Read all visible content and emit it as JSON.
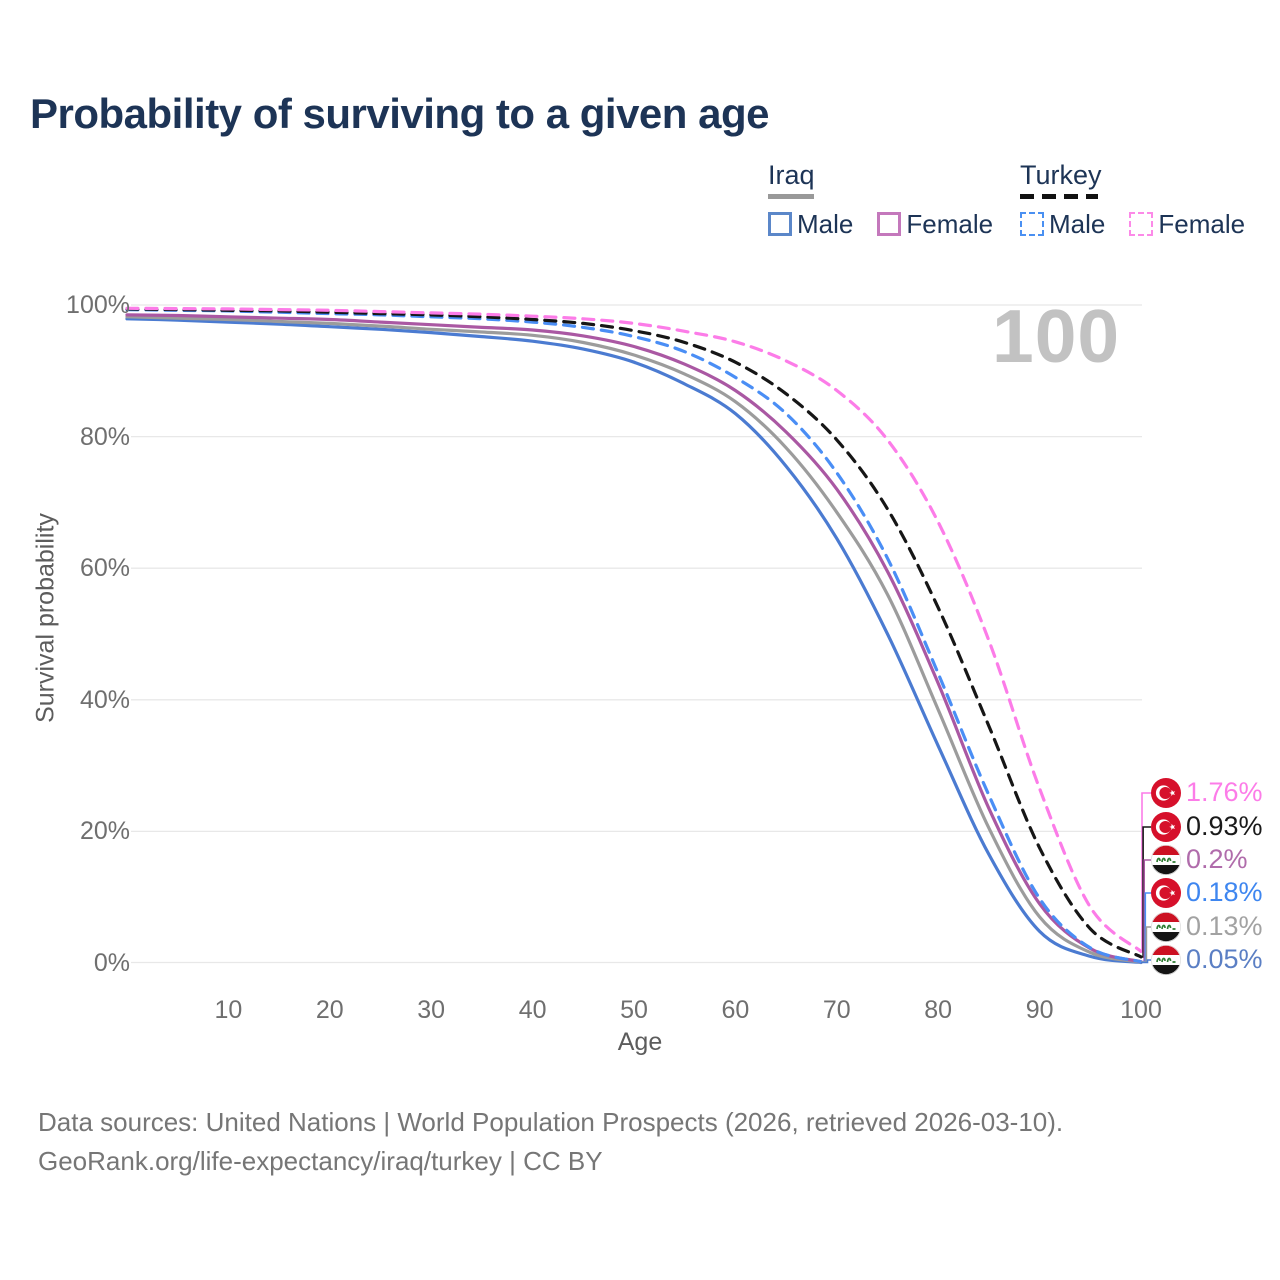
{
  "title": "Probability of surviving to a given age",
  "watermark": "100",
  "legend": {
    "groups": [
      {
        "country": "Iraq",
        "line_style": "solid",
        "underline_color": "#999999",
        "items": [
          {
            "label": "Male",
            "color": "#5b87c9",
            "dashed": false
          },
          {
            "label": "Female",
            "color": "#c478bc",
            "dashed": false
          }
        ]
      },
      {
        "country": "Turkey",
        "line_style": "dashed",
        "underline_color": "#111111",
        "items": [
          {
            "label": "Male",
            "color": "#4a90f2",
            "dashed": true
          },
          {
            "label": "Female",
            "color": "#fc8ae8",
            "dashed": true
          }
        ]
      }
    ]
  },
  "chart_data": {
    "type": "line",
    "title": "Probability of surviving to a given age",
    "xlabel": "Age",
    "ylabel": "Survival probability",
    "xlim": [
      0,
      100
    ],
    "ylim": [
      0,
      100
    ],
    "grid": true,
    "legend_position": "top-right",
    "hover_age_indicator": "100",
    "x_ticks": [
      10,
      20,
      30,
      40,
      50,
      60,
      70,
      80,
      90,
      100
    ],
    "y_ticks": [
      {
        "label": "0%",
        "value": 0
      },
      {
        "label": "20%",
        "value": 20
      },
      {
        "label": "40%",
        "value": 40
      },
      {
        "label": "60%",
        "value": 60
      },
      {
        "label": "80%",
        "value": 80
      },
      {
        "label": "100%",
        "value": 100
      }
    ],
    "ages": [
      0,
      5,
      10,
      15,
      20,
      25,
      30,
      35,
      40,
      45,
      50,
      55,
      60,
      65,
      70,
      75,
      80,
      85,
      90,
      95,
      100
    ],
    "series": [
      {
        "name": "Iraq Male",
        "country": "iraq",
        "sex": "male",
        "color": "#4b7bd1",
        "dashed": false,
        "end_label": "0.05%",
        "end_label_color": "#5b7fc4",
        "values": [
          97.9,
          97.7,
          97.4,
          97.1,
          96.7,
          96.3,
          95.8,
          95.2,
          94.5,
          93.3,
          91.3,
          88.0,
          83.5,
          75.5,
          64.5,
          50.0,
          33.0,
          16.5,
          4.8,
          1.0,
          0.05
        ]
      },
      {
        "name": "Iraq (both sexes)",
        "country": "iraq",
        "sex": "all",
        "color": "#9c9c9c",
        "dashed": false,
        "end_label": "0.13%",
        "end_label_color": "#a2a2a2",
        "values": [
          98.2,
          98.0,
          97.8,
          97.5,
          97.2,
          96.8,
          96.3,
          95.9,
          95.4,
          94.3,
          92.4,
          89.5,
          85.3,
          78.3,
          68.5,
          56.0,
          38.5,
          20.5,
          7.0,
          1.6,
          0.13
        ]
      },
      {
        "name": "Iraq Female",
        "country": "iraq",
        "sex": "female",
        "color": "#aa58a3",
        "dashed": false,
        "end_label": "0.2%",
        "end_label_color": "#b06cab",
        "values": [
          98.5,
          98.4,
          98.2,
          98.0,
          97.8,
          97.4,
          97.0,
          96.6,
          96.2,
          95.3,
          93.7,
          91.0,
          87.0,
          80.7,
          72.0,
          59.5,
          42.5,
          23.5,
          9.0,
          2.2,
          0.2
        ]
      },
      {
        "name": "Turkey Male",
        "country": "turkey",
        "sex": "male",
        "color": "#4a8ef5",
        "dashed": true,
        "end_label": "0.18%",
        "end_label_color": "#3e86f0",
        "values": [
          99.3,
          99.2,
          99.1,
          98.9,
          98.7,
          98.5,
          98.2,
          97.9,
          97.4,
          96.6,
          95.2,
          92.9,
          89.0,
          83.5,
          74.5,
          61.5,
          44.0,
          25.5,
          9.8,
          2.3,
          0.18
        ]
      },
      {
        "name": "Turkey (both sexes)",
        "country": "turkey",
        "sex": "all",
        "color": "#161616",
        "dashed": true,
        "end_label": "0.93%",
        "end_label_color": "#1a1a1a",
        "values": [
          99.4,
          99.3,
          99.2,
          99.1,
          98.9,
          98.7,
          98.5,
          98.2,
          97.8,
          97.2,
          96.1,
          94.3,
          91.3,
          86.5,
          79.5,
          69.0,
          54.0,
          36.0,
          17.5,
          5.2,
          0.93
        ]
      },
      {
        "name": "Turkey Female",
        "country": "turkey",
        "sex": "female",
        "color": "#fc7ce8",
        "dashed": true,
        "end_label": "1.76%",
        "end_label_color": "#fc7ce8",
        "values": [
          99.5,
          99.45,
          99.4,
          99.3,
          99.2,
          99.0,
          98.8,
          98.6,
          98.3,
          97.9,
          97.2,
          96.0,
          94.4,
          91.5,
          87.0,
          79.5,
          67.0,
          49.0,
          26.5,
          8.5,
          1.76
        ]
      }
    ]
  },
  "footer": {
    "line1": "Data sources: United Nations | World Population Prospects (2026, retrieved 2026-03-10).",
    "line2": "GeoRank.org/life-expectancy/iraq/turkey | CC BY"
  }
}
